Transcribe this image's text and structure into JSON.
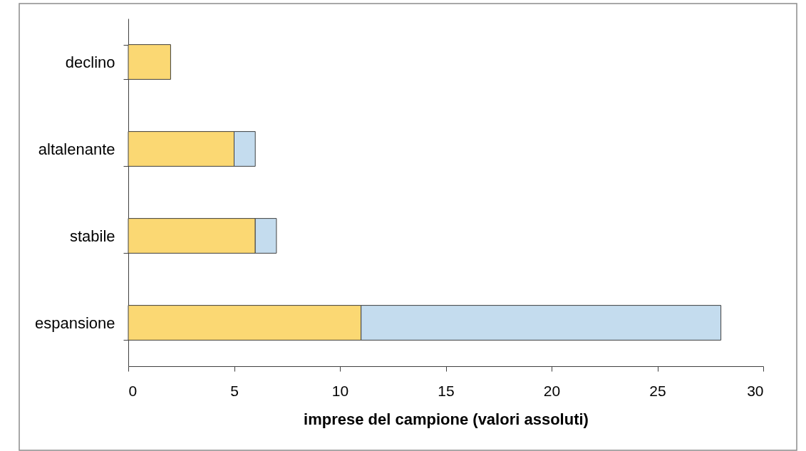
{
  "chart_data": {
    "type": "bar",
    "orientation": "horizontal",
    "stacked": true,
    "categories": [
      "declino",
      "altalenante",
      "stabile",
      "espansione"
    ],
    "series": [
      {
        "color": "#fbd873",
        "values": [
          2,
          5,
          6,
          11
        ]
      },
      {
        "color": "#c4dcee",
        "values": [
          null,
          1,
          1,
          17
        ]
      }
    ],
    "xlabel": "imprese del campione (valori assoluti)",
    "xlim": [
      0,
      30
    ],
    "xticks": [
      0,
      5,
      10,
      15,
      20,
      25,
      30
    ],
    "grid": false
  }
}
